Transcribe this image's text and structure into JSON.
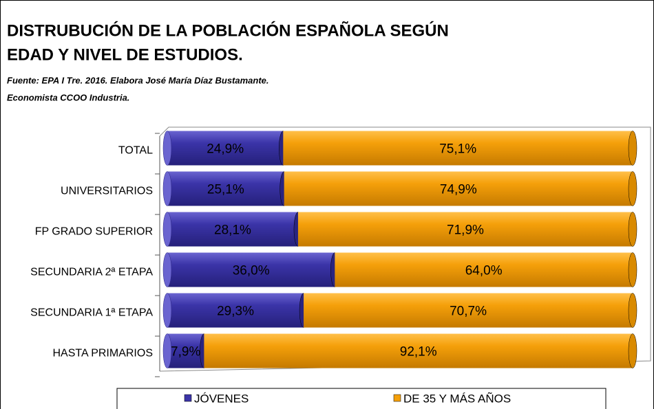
{
  "chart_data": {
    "type": "bar",
    "title": [
      "DISTRUBUCIÓN DE LA POBLACIÓN ESPAÑOLA SEGÚN",
      "EDAD Y NIVEL DE ESTUDIOS."
    ],
    "subtitle": [
      "Fuente: EPA I Tre. 2016. Elabora José María Díaz Bustamante.",
      "Economista CCOO Industria."
    ],
    "categories": [
      "TOTAL",
      "UNIVERSITARIOS",
      "FP GRADO SUPERIOR",
      "SECUNDARIA 2ª ETAPA",
      "SECUNDARIA 1ª ETAPA",
      "HASTA PRIMARIOS"
    ],
    "series": [
      {
        "name": "JÓVENES",
        "color": "#3b34a8",
        "values": [
          24.9,
          25.1,
          28.1,
          36.0,
          29.3,
          7.9
        ],
        "value_labels": [
          "24,9%",
          "25,1%",
          "28,1%",
          "36,0%",
          "29,3%",
          "7,9%"
        ]
      },
      {
        "name": "DE 35 Y MÁS AÑOS",
        "color": "#f5a00a",
        "values": [
          75.1,
          74.9,
          71.9,
          64.0,
          70.7,
          92.1
        ],
        "value_labels": [
          "75,1%",
          "74,9%",
          "71,9%",
          "64,0%",
          "70,7%",
          "92,1%"
        ]
      }
    ],
    "xlim": [
      0,
      100
    ],
    "stacked": true,
    "legend": "bottom"
  }
}
